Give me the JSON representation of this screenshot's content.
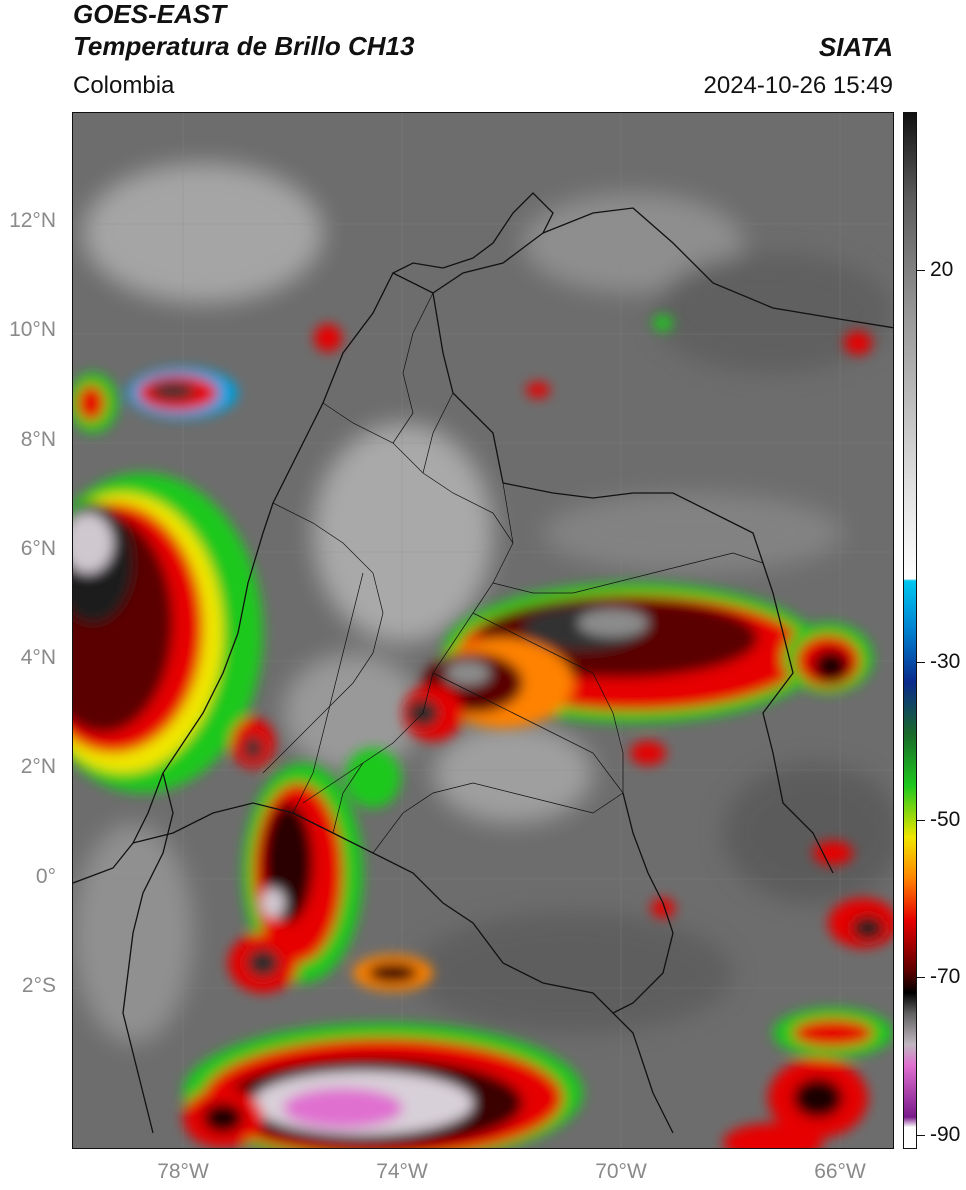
{
  "header": {
    "title_line1": "GOES-EAST",
    "title_line2": "Temperatura de Brillo CH13",
    "organization": "SIATA",
    "region": "Colombia",
    "timestamp": "2024-10-26 15:49"
  },
  "map": {
    "lat_ticks": [
      "12°N",
      "10°N",
      "8°N",
      "6°N",
      "4°N",
      "2°N",
      "0°",
      "2°S"
    ],
    "lon_ticks": [
      "78°W",
      "74°W",
      "70°W",
      "66°W"
    ],
    "extent": {
      "lon_min": -80,
      "lon_max": -65,
      "lat_min": -5,
      "lat_max": 14
    }
  },
  "colorbar": {
    "ticks": [
      "20",
      "-30",
      "-50",
      "-70",
      "-90"
    ],
    "colors": {
      "warm_gray_top": "#111111",
      "light_gray": "#e0e0e0",
      "cyan": "#00c8f0",
      "blue": "#0a2a8c",
      "green": "#1ec81e",
      "yellow": "#f0e600",
      "orange": "#ff8200",
      "red": "#e60000",
      "dark_red": "#5a0000",
      "black": "#000000",
      "magenta": "#e070d0",
      "purple": "#7a1a8a"
    }
  }
}
